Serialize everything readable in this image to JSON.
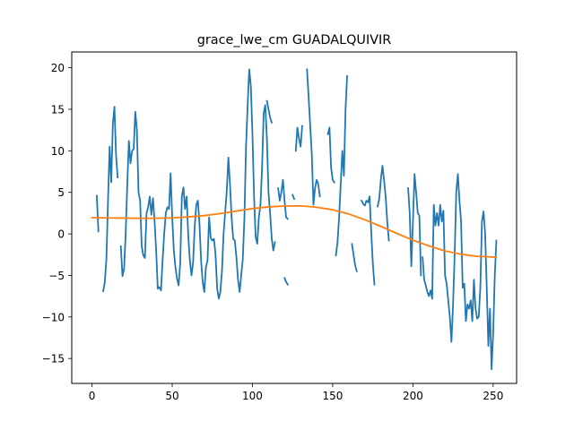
{
  "chart_data": {
    "type": "line",
    "title": "grace_lwe_cm GUADALQUIVIR",
    "xlabel": "",
    "ylabel": "",
    "xlim": [
      -12.6,
      264.6
    ],
    "ylim": [
      -18.0,
      21.9
    ],
    "x_ticks": [
      0,
      50,
      100,
      150,
      200,
      250
    ],
    "y_ticks": [
      -15,
      -10,
      -5,
      0,
      5,
      10,
      15,
      20
    ],
    "grid": false,
    "legend": "none",
    "series": [
      {
        "color": "#1f77b4",
        "points": [
          [
            3,
            4.6
          ],
          [
            4,
            0.3
          ],
          null,
          [
            7,
            -6.9
          ],
          [
            8,
            -5.8
          ],
          [
            9,
            -3.0
          ],
          [
            10,
            4.0
          ],
          [
            11,
            10.5
          ],
          [
            12,
            6.2
          ],
          [
            13,
            13.2
          ],
          [
            14,
            15.3
          ],
          [
            15,
            9.5
          ],
          [
            16,
            6.8
          ],
          null,
          [
            18,
            -1.5
          ],
          [
            19,
            -5.1
          ],
          [
            20,
            -4.2
          ],
          [
            21,
            0.0
          ],
          [
            22,
            6.0
          ],
          [
            23,
            11.2
          ],
          [
            24,
            8.5
          ],
          [
            25,
            10.0
          ],
          [
            26,
            10.2
          ],
          [
            27,
            14.7
          ],
          [
            28,
            12.5
          ],
          [
            29,
            5.0
          ],
          [
            30,
            4.0
          ],
          [
            31,
            -1.5
          ],
          [
            32,
            -2.6
          ],
          [
            33,
            -2.9
          ],
          [
            34,
            2.5
          ],
          [
            35,
            3.2
          ],
          [
            36,
            4.5
          ],
          [
            37,
            2.3
          ],
          [
            38,
            4.3
          ],
          [
            39,
            1.6
          ],
          [
            40,
            -2.0
          ],
          [
            41,
            -6.6
          ],
          [
            42,
            -6.4
          ],
          [
            43,
            -6.8
          ],
          [
            44,
            -3.2
          ],
          [
            45,
            0.0
          ],
          [
            46,
            2.5
          ],
          [
            47,
            3.2
          ],
          [
            48,
            3.0
          ],
          [
            49,
            7.3
          ],
          [
            50,
            2.0
          ],
          [
            51,
            -2.0
          ],
          [
            52,
            -4.0
          ],
          [
            53,
            -5.4
          ],
          [
            54,
            -6.2
          ],
          [
            55,
            -3.5
          ],
          [
            56,
            4.5
          ],
          [
            57,
            5.6
          ],
          [
            58,
            3.0
          ],
          [
            59,
            4.5
          ],
          [
            60,
            -0.2
          ],
          [
            61,
            -3.2
          ],
          [
            62,
            -5.0
          ],
          [
            63,
            -3.5
          ],
          [
            64,
            0.8
          ],
          [
            65,
            3.5
          ],
          [
            66,
            4.0
          ],
          [
            67,
            1.2
          ],
          [
            68,
            -3.2
          ],
          [
            69,
            -5.8
          ],
          [
            70,
            -7.0
          ],
          [
            71,
            -4.0
          ],
          [
            72,
            -3.2
          ],
          [
            73,
            2.0
          ],
          [
            74,
            -0.5
          ],
          [
            75,
            -0.8
          ],
          [
            76,
            -0.6
          ],
          [
            77,
            -2.5
          ],
          [
            78,
            -6.5
          ],
          [
            79,
            -7.8
          ],
          [
            80,
            -7.0
          ],
          [
            81,
            -4.5
          ],
          [
            82,
            0.0
          ],
          [
            83,
            2.6
          ],
          [
            84,
            5.2
          ],
          [
            85,
            9.2
          ],
          [
            86,
            6.0
          ],
          [
            87,
            2.0
          ],
          [
            88,
            -0.6
          ],
          [
            89,
            -0.8
          ],
          [
            90,
            -2.8
          ],
          [
            91,
            -5.5
          ],
          [
            92,
            -7.0
          ],
          [
            93,
            -5.0
          ],
          [
            94,
            -3.0
          ],
          [
            95,
            2.0
          ],
          [
            96,
            10.5
          ],
          [
            97,
            15.5
          ],
          [
            98,
            19.8
          ],
          [
            99,
            17.8
          ],
          [
            100,
            12.0
          ],
          [
            101,
            4.5
          ],
          [
            102,
            -0.4
          ],
          [
            103,
            -1.2
          ],
          [
            104,
            2.0
          ],
          [
            105,
            3.5
          ],
          [
            106,
            8.0
          ],
          [
            107,
            14.5
          ],
          [
            108,
            15.5
          ],
          [
            109,
            11.5
          ],
          [
            110,
            5.0
          ],
          [
            111,
            2.5
          ],
          [
            112,
            -0.5
          ],
          [
            113,
            -2.0
          ],
          [
            114,
            -1.0
          ],
          null,
          [
            109,
            16.0
          ],
          [
            110,
            15.0
          ],
          [
            111,
            14.0
          ],
          [
            112,
            13.4
          ],
          null,
          [
            116,
            5.5
          ],
          [
            117,
            4.0
          ],
          [
            118,
            5.0
          ],
          [
            119,
            6.5
          ],
          [
            120,
            4.0
          ],
          [
            121,
            2.0
          ],
          [
            122,
            1.8
          ],
          null,
          [
            125,
            4.7
          ],
          [
            126,
            4.2
          ],
          null,
          [
            120,
            -5.3
          ],
          [
            121,
            -5.8
          ],
          [
            122,
            -6.1
          ],
          null,
          [
            127,
            10.0
          ],
          [
            128,
            12.8
          ],
          [
            129,
            11.5
          ],
          [
            130,
            10.5
          ],
          [
            131,
            13.0
          ],
          null,
          [
            134,
            19.8
          ],
          [
            135,
            16.5
          ],
          [
            136,
            13.0
          ],
          [
            137,
            9.5
          ],
          [
            138,
            3.5
          ],
          [
            139,
            5.5
          ],
          [
            140,
            6.5
          ],
          [
            141,
            6.0
          ],
          [
            142,
            4.5
          ],
          null,
          [
            147,
            12.0
          ],
          [
            148,
            12.8
          ],
          [
            149,
            8.0
          ],
          [
            150,
            6.5
          ],
          [
            151,
            6.2
          ],
          null,
          [
            152,
            -2.6
          ],
          [
            153,
            -1.0
          ],
          [
            154,
            2.0
          ],
          [
            155,
            6.0
          ],
          [
            156,
            10.0
          ],
          [
            157,
            7.0
          ],
          [
            158,
            15.0
          ],
          [
            159,
            19.0
          ],
          null,
          [
            162,
            -1.2
          ],
          [
            163,
            -2.5
          ],
          [
            164,
            -3.8
          ],
          [
            165,
            -4.5
          ],
          null,
          [
            168,
            4.0
          ],
          [
            169,
            3.6
          ],
          [
            170,
            3.4
          ],
          [
            171,
            4.0
          ],
          [
            172,
            3.8
          ],
          [
            173,
            4.5
          ],
          [
            174,
            0.3
          ],
          [
            175,
            -3.5
          ],
          [
            176,
            -6.1
          ],
          null,
          [
            178,
            3.3
          ],
          [
            179,
            4.2
          ],
          [
            180,
            6.5
          ],
          [
            181,
            8.2
          ],
          [
            182,
            6.5
          ],
          [
            183,
            4.5
          ],
          [
            184,
            1.5
          ],
          [
            185,
            -0.8
          ],
          null,
          [
            197,
            5.5
          ],
          [
            198,
            2.5
          ],
          [
            199,
            -3.9
          ],
          [
            200,
            1.5
          ],
          [
            201,
            7.2
          ],
          [
            202,
            5.0
          ],
          [
            203,
            2.5
          ],
          [
            204,
            2.2
          ],
          [
            205,
            -5.0
          ],
          null,
          [
            206,
            -2.8
          ],
          [
            207,
            -5.5
          ],
          [
            208,
            -6.2
          ],
          [
            209,
            -7.0
          ],
          [
            210,
            -7.5
          ],
          [
            211,
            -6.8
          ],
          [
            212,
            -7.8
          ],
          [
            213,
            3.5
          ],
          [
            214,
            1.0
          ],
          [
            215,
            2.5
          ],
          [
            216,
            1.0
          ],
          [
            217,
            3.5
          ],
          [
            218,
            1.5
          ],
          [
            219,
            2.8
          ],
          [
            220,
            -5.0
          ],
          [
            221,
            -6.0
          ],
          [
            222,
            -8.0
          ],
          [
            223,
            -10.0
          ],
          [
            224,
            -13.0
          ],
          [
            225,
            -8.5
          ],
          [
            226,
            -2.5
          ],
          [
            227,
            5.0
          ],
          [
            228,
            7.2
          ],
          [
            229,
            4.0
          ],
          [
            230,
            1.5
          ],
          [
            231,
            -6.5
          ],
          [
            232,
            -6.0
          ],
          [
            233,
            -10.5
          ],
          [
            234,
            -8.5
          ],
          [
            235,
            -9.0
          ],
          [
            236,
            -8.0
          ],
          [
            237,
            -10.5
          ],
          [
            238,
            -5.5
          ],
          [
            239,
            -9.0
          ],
          [
            240,
            -10.2
          ],
          [
            241,
            -10.0
          ],
          [
            242,
            -6.5
          ],
          [
            243,
            1.5
          ],
          [
            244,
            2.7
          ],
          [
            245,
            0.0
          ],
          [
            246,
            -6.5
          ],
          [
            247,
            -13.5
          ],
          [
            248,
            -9.0
          ],
          [
            249,
            -16.3
          ],
          [
            250,
            -12.0
          ],
          [
            251,
            -5.0
          ],
          [
            252,
            -0.8
          ]
        ]
      },
      {
        "color": "#ff7f0e",
        "points": [
          [
            0,
            1.95
          ],
          [
            10,
            1.92
          ],
          [
            20,
            1.9
          ],
          [
            30,
            1.88
          ],
          [
            40,
            1.88
          ],
          [
            50,
            1.92
          ],
          [
            60,
            2.05
          ],
          [
            70,
            2.2
          ],
          [
            80,
            2.45
          ],
          [
            90,
            2.75
          ],
          [
            100,
            3.05
          ],
          [
            110,
            3.25
          ],
          [
            120,
            3.35
          ],
          [
            130,
            3.38
          ],
          [
            140,
            3.2
          ],
          [
            150,
            2.9
          ],
          [
            160,
            2.4
          ],
          [
            170,
            1.7
          ],
          [
            180,
            0.9
          ],
          [
            190,
            0.05
          ],
          [
            200,
            -0.75
          ],
          [
            210,
            -1.45
          ],
          [
            220,
            -2.05
          ],
          [
            230,
            -2.45
          ],
          [
            240,
            -2.7
          ],
          [
            252,
            -2.8
          ]
        ]
      }
    ]
  }
}
